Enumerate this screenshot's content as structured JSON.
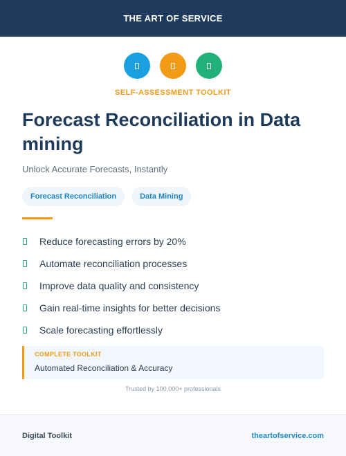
{
  "header": {
    "brand": "THE ART OF SERVICE"
  },
  "icons": [
    {
      "name": "document-icon",
      "color": "#1a9fe0"
    },
    {
      "name": "document-icon",
      "color": "#f29b16"
    },
    {
      "name": "document-icon",
      "color": "#22b07a"
    }
  ],
  "kicker": "SELF-ASSESSMENT TOOLKIT",
  "title": "Forecast Reconciliation in Data mining",
  "subtitle": "Unlock Accurate Forecasts, Instantly",
  "tags": [
    "Forecast Reconciliation",
    "Data Mining"
  ],
  "benefits": [
    "Reduce forecasting errors by 20%",
    "Automate reconciliation processes",
    "Improve data quality and consistency",
    "Gain real-time insights for better decisions",
    "Scale forecasting effortlessly"
  ],
  "callout": {
    "label": "COMPLETE TOOLKIT",
    "text": "Automated Reconciliation & Accuracy"
  },
  "trust": "Trusted by 100,000+ professionals",
  "footer": {
    "left": "Digital Toolkit",
    "right": "theartofservice.com"
  },
  "colors": {
    "navy": "#1f3a5c",
    "accent_orange": "#f29b16",
    "accent_blue": "#1a9fe0",
    "accent_green": "#22b07a"
  }
}
